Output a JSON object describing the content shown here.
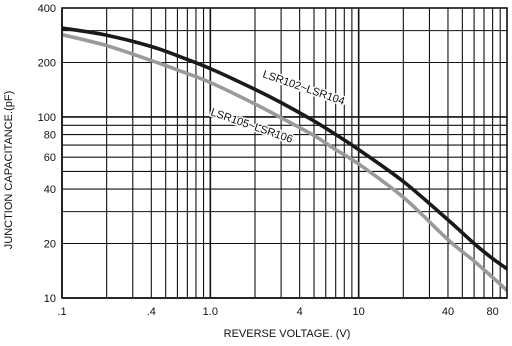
{
  "chart_data": {
    "type": "line",
    "title": "",
    "xlabel": "REVERSE VOLTAGE. (V)",
    "ylabel": "JUNCTION CAPACITANCE.(pF)",
    "x_scale": "log",
    "y_scale": "log",
    "xlim": [
      0.1,
      100
    ],
    "ylim": [
      10,
      400
    ],
    "grid": true,
    "legend": "none",
    "x_ticks": [
      {
        "value": 0.1,
        "label": ".1"
      },
      {
        "value": 0.4,
        "label": ".4"
      },
      {
        "value": 1,
        "label": "1.0"
      },
      {
        "value": 4,
        "label": "4"
      },
      {
        "value": 10,
        "label": "10"
      },
      {
        "value": 40,
        "label": "40"
      },
      {
        "value": 80,
        "label": "80"
      }
    ],
    "y_ticks": [
      {
        "value": 10,
        "label": "10"
      },
      {
        "value": 20,
        "label": "20"
      },
      {
        "value": 40,
        "label": "40"
      },
      {
        "value": 60,
        "label": "60"
      },
      {
        "value": 80,
        "label": "80"
      },
      {
        "value": 100,
        "label": "100"
      },
      {
        "value": 200,
        "label": "200"
      },
      {
        "value": 400,
        "label": "400"
      }
    ],
    "series": [
      {
        "name": "LSR102~LSR104",
        "color": "#1a1a1a",
        "x": [
          0.1,
          0.2,
          0.4,
          0.6,
          1,
          2,
          3,
          5,
          7,
          10,
          20,
          40,
          60,
          80,
          100
        ],
        "y": [
          310,
          283,
          245,
          218,
          185,
          142,
          120,
          95,
          80,
          66,
          44,
          27,
          20,
          16.5,
          14.5
        ]
      },
      {
        "name": "LSR105~LSR106",
        "color": "#9a9a9a",
        "x": [
          0.1,
          0.2,
          0.4,
          0.6,
          1,
          2,
          3,
          5,
          7,
          10,
          20,
          40,
          60,
          80,
          100
        ],
        "y": [
          285,
          248,
          205,
          182,
          155,
          118,
          99,
          79,
          66,
          55,
          36,
          21,
          16,
          13,
          11
        ]
      }
    ]
  }
}
